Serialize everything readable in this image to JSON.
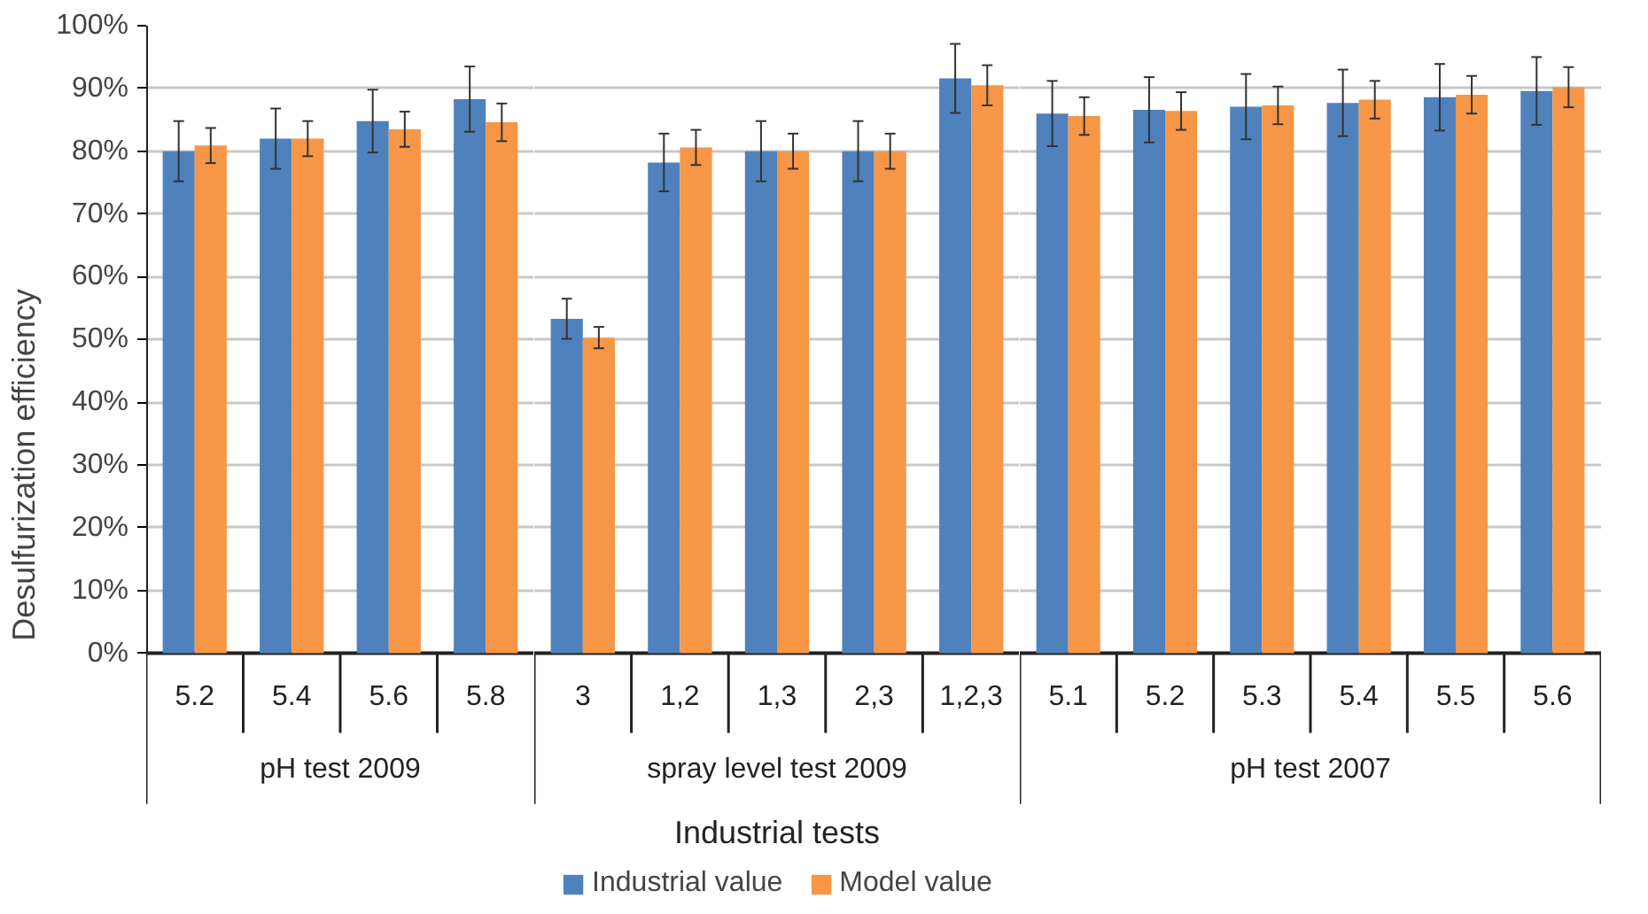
{
  "chart_data": [
    {
      "type": "bar",
      "xlabel": "pH test 2009",
      "ylabel": "Desulfurization efficiency",
      "categories": [
        "5.2",
        "5.4",
        "5.6",
        "5.8"
      ],
      "series": [
        {
          "color": "#4f81bd",
          "values": [
            80,
            82,
            84.8,
            88.3
          ],
          "errors": [
            4.8,
            4.8,
            5,
            5.2
          ]
        },
        {
          "color": "#f79646",
          "values": [
            80.9,
            82,
            83.5,
            84.6
          ],
          "errors": [
            2.8,
            2.8,
            2.8,
            3
          ]
        }
      ],
      "ylim": [
        0,
        100
      ],
      "yticks": [
        {
          "value": 0,
          "label": "0%"
        },
        {
          "value": 10,
          "label": "10%"
        },
        {
          "value": 20,
          "label": "20%"
        },
        {
          "value": 30,
          "label": "30%"
        },
        {
          "value": 40,
          "label": "40%"
        },
        {
          "value": 50,
          "label": "50%"
        },
        {
          "value": 60,
          "label": "60%"
        },
        {
          "value": 70,
          "label": "70%"
        },
        {
          "value": 80,
          "label": "80%"
        },
        {
          "value": 90,
          "label": "90%"
        },
        {
          "value": 100,
          "label": "100%"
        }
      ],
      "grid": "y"
    },
    {
      "type": "bar",
      "xlabel": "spray level test 2009",
      "categories": [
        "3",
        "1,2",
        "1,3",
        "2,3",
        "1,2,3"
      ],
      "series": [
        {
          "name": "Industrial value",
          "color": "#4f81bd",
          "values": [
            53.3,
            78.2,
            80,
            80,
            91.6
          ],
          "errors": [
            3.2,
            4.6,
            4.8,
            4.8,
            5.5
          ]
        },
        {
          "name": "Model value",
          "color": "#f79646",
          "values": [
            50.3,
            80.6,
            80,
            80,
            90.5
          ],
          "errors": [
            1.7,
            2.8,
            2.8,
            2.8,
            3.2
          ]
        }
      ],
      "annotations": [
        "Industrial tests"
      ],
      "ylim": [
        0,
        100
      ],
      "yticks": [
        0,
        10,
        20,
        30,
        40,
        50,
        60,
        70,
        80,
        90,
        100
      ],
      "grid": "y",
      "legend": "bottom",
      "tick_labels": "x"
    },
    {
      "type": "bar",
      "xlabel": "pH test 2007",
      "categories": [
        "5.1",
        "5.2",
        "5.3",
        "5.4",
        "5.5",
        "5.6"
      ],
      "series": [
        {
          "color": "#4f81bd",
          "values": [
            86,
            86.6,
            87.1,
            87.7,
            88.6,
            89.6
          ],
          "errors": [
            5.2,
            5.2,
            5.2,
            5.3,
            5.3,
            5.4
          ]
        },
        {
          "color": "#f79646",
          "values": [
            85.6,
            86.4,
            87.3,
            88.2,
            89,
            90.2
          ],
          "errors": [
            3,
            3,
            3,
            3,
            3,
            3.2
          ]
        }
      ],
      "ylim": [
        0,
        100
      ],
      "yticks": [
        0,
        10,
        20,
        30,
        40,
        50,
        60,
        70,
        80,
        90,
        100
      ],
      "grid": "y",
      "tick_labels": "x"
    }
  ]
}
